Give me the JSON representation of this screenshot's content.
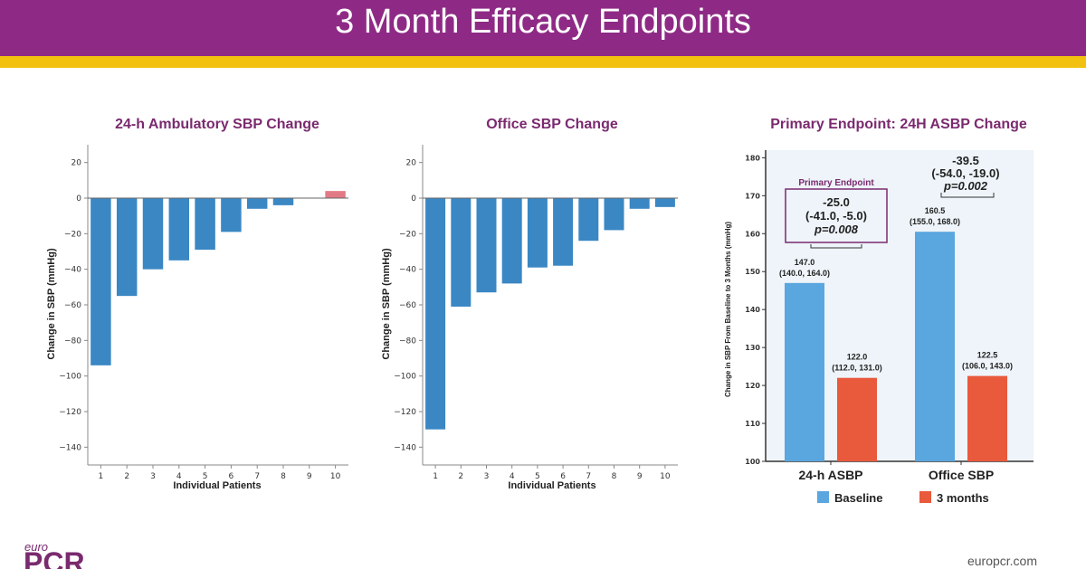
{
  "header": {
    "title": "3 Month Efficacy Endpoints"
  },
  "footer": {
    "brand_top": "euro",
    "brand_main": "PCR",
    "url": "europcr.com"
  },
  "colors": {
    "header": "#8e2a85",
    "stripe": "#f2c10f",
    "title_purple": "#7a2a6f",
    "bar_blue": "#3a87c4",
    "bar_pink": "#e27a86",
    "baseline_blue": "#5aa6df",
    "month3_orange": "#e9593c"
  },
  "chart_data": [
    {
      "type": "bar",
      "title": "24-h Ambulatory SBP Change",
      "xlabel": "Individual Patients",
      "ylabel": "Change in SBP (mmHg)",
      "categories": [
        "1",
        "2",
        "3",
        "4",
        "5",
        "6",
        "7",
        "8",
        "9",
        "10"
      ],
      "values": [
        -94,
        -55,
        -40,
        -35,
        -29,
        -19,
        -6,
        -4,
        0,
        4
      ],
      "yticks": [
        20,
        0,
        -20,
        -40,
        -60,
        -80,
        -100,
        -120,
        -140
      ],
      "ylim": [
        -150,
        30
      ],
      "grid": false
    },
    {
      "type": "bar",
      "title": "Office SBP Change",
      "xlabel": "Individual Patients",
      "ylabel": "Change in SBP (mmHg)",
      "categories": [
        "1",
        "2",
        "3",
        "4",
        "5",
        "6",
        "7",
        "8",
        "9",
        "10"
      ],
      "values": [
        -130,
        -61,
        -53,
        -48,
        -39,
        -38,
        -24,
        -18,
        -6,
        -5
      ],
      "yticks": [
        20,
        0,
        -20,
        -40,
        -60,
        -80,
        -100,
        -120,
        -140
      ],
      "ylim": [
        -150,
        30
      ],
      "grid": false
    },
    {
      "type": "bar",
      "title": "Primary Endpoint: 24H ASBP Change",
      "ylabel": "Change in SBP From Baseline to 3 Months (mmHg)",
      "categories": [
        "24-h ASBP",
        "Office SBP"
      ],
      "yticks": [
        100,
        110,
        120,
        130,
        140,
        150,
        160,
        170,
        180
      ],
      "ylim": [
        100,
        182
      ],
      "legend_position": "bottom",
      "series": [
        {
          "name": "Baseline",
          "values": [
            147.0,
            160.5
          ],
          "labels": [
            "147.0",
            "160.5"
          ],
          "ranges": [
            "(140.0, 164.0)",
            "(155.0, 168.0)"
          ]
        },
        {
          "name": "3 months",
          "values": [
            122.0,
            122.5
          ],
          "labels": [
            "122.0",
            "122.5"
          ],
          "ranges": [
            "(112.0, 131.0)",
            "(106.0, 143.0)"
          ]
        }
      ],
      "annotations": [
        {
          "box_title": "Primary Endpoint",
          "diff": "-25.0",
          "ci": "(-41.0, -5.0)",
          "p": "p=0.008"
        },
        {
          "box_title": "",
          "diff": "-39.5",
          "ci": "(-54.0, -19.0)",
          "p": "p=0.002"
        }
      ]
    }
  ]
}
